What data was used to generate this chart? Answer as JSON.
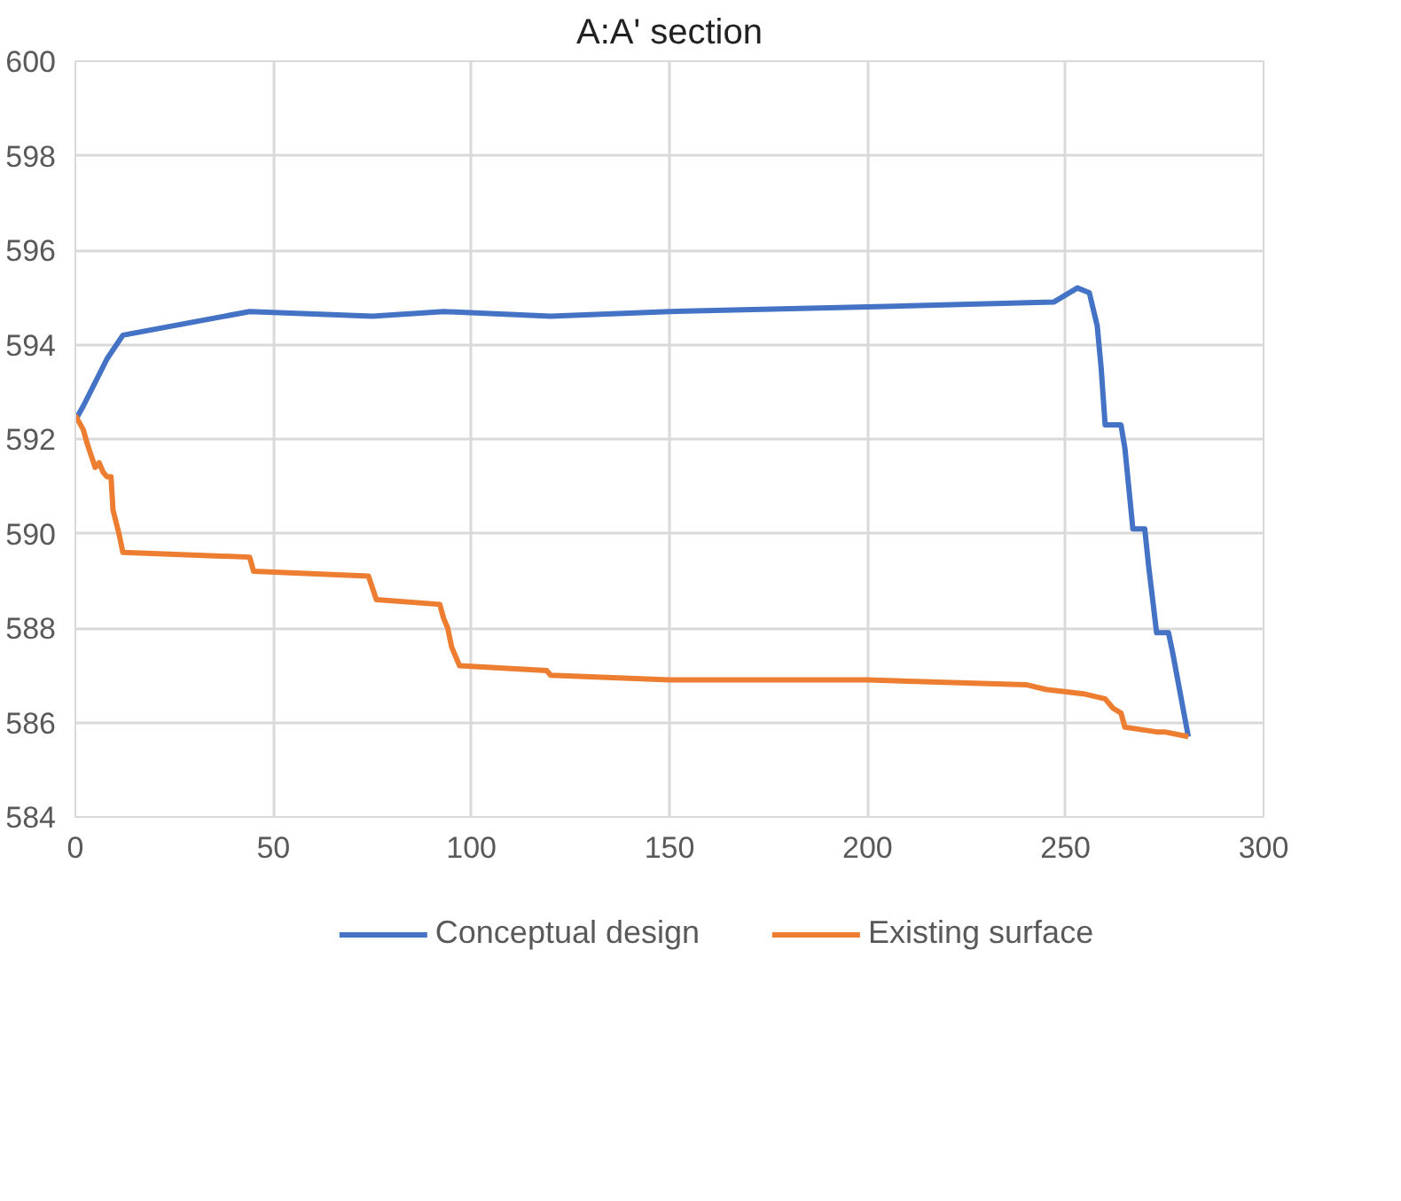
{
  "chart_data": {
    "type": "line",
    "title": "A:A' section",
    "xlim": [
      0,
      300
    ],
    "ylim": [
      584,
      600
    ],
    "xticks": [
      0,
      50,
      100,
      150,
      200,
      250,
      300
    ],
    "yticks": [
      584,
      586,
      588,
      590,
      592,
      594,
      596,
      598,
      600
    ],
    "grid": true,
    "legend": "bottom",
    "marker": "none",
    "line_style": "solid",
    "series": [
      {
        "name": "Conceptual design",
        "color": "#4472c4",
        "x": [
          0,
          2,
          5,
          8,
          12,
          44,
          75,
          93,
          120,
          150,
          200,
          247,
          253,
          256,
          258,
          259,
          260,
          264,
          265,
          267,
          270,
          271,
          273,
          276,
          277,
          281
        ],
        "values": [
          592.4,
          592.7,
          593.2,
          593.7,
          594.2,
          594.7,
          594.6,
          594.7,
          594.6,
          594.7,
          594.8,
          594.9,
          595.2,
          595.1,
          594.4,
          593.5,
          592.3,
          592.3,
          591.8,
          590.1,
          590.1,
          589.3,
          587.9,
          587.9,
          587.5,
          585.7
        ]
      },
      {
        "name": "Existing surface",
        "color": "#ed7d31",
        "x": [
          0,
          2,
          3,
          5,
          6,
          7,
          8,
          9,
          9.5,
          11,
          12,
          44,
          45,
          74,
          76,
          92,
          93,
          94,
          95,
          97,
          119,
          120,
          150,
          200,
          240,
          245,
          255,
          260,
          262,
          264,
          265,
          273,
          275,
          281
        ],
        "values": [
          592.5,
          592.2,
          591.9,
          591.4,
          591.5,
          591.3,
          591.2,
          591.2,
          590.5,
          590.0,
          589.6,
          589.5,
          589.2,
          589.1,
          588.6,
          588.5,
          588.2,
          588.0,
          587.6,
          587.2,
          587.1,
          587.0,
          586.9,
          586.9,
          586.8,
          586.7,
          586.6,
          586.5,
          586.3,
          586.2,
          585.9,
          585.8,
          585.8,
          585.7
        ]
      }
    ]
  }
}
